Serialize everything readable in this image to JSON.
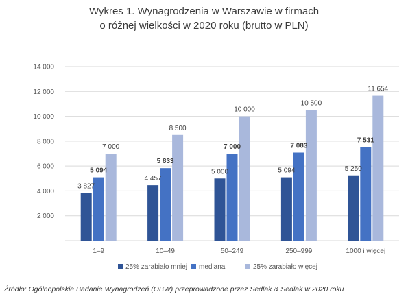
{
  "chart_data": {
    "type": "bar",
    "title_lines": [
      "Wykres 1. Wynagrodzenia w Warszawie w firmach",
      "o różnej wielkości w 2020 roku (brutto w PLN)"
    ],
    "categories": [
      "1–9",
      "10–49",
      "50–249",
      "250–999",
      "1000 i więcej"
    ],
    "series": [
      {
        "name": "25% zarabiało mniej",
        "values": [
          3827,
          4457,
          5000,
          5094,
          5250
        ],
        "labels": [
          "3 827",
          "4 457",
          "5 000",
          "5 094",
          "5 250"
        ],
        "color": "#2f5496",
        "bold_labels": false
      },
      {
        "name": "mediana",
        "values": [
          5094,
          5833,
          7000,
          7083,
          7531
        ],
        "labels": [
          "5 094",
          "5 833",
          "7 000",
          "7 083",
          "7 531"
        ],
        "color": "#4472c4",
        "bold_labels": true
      },
      {
        "name": "25% zarabiało więcej",
        "values": [
          7000,
          8500,
          10000,
          10500,
          11654
        ],
        "labels": [
          "7 000",
          "8 500",
          "10 000",
          "10 500",
          "11 654"
        ],
        "color": "#a9b8dc",
        "bold_labels": false
      }
    ],
    "ylim": [
      0,
      14000
    ],
    "yticks": [
      0,
      2000,
      4000,
      6000,
      8000,
      10000,
      12000,
      14000
    ],
    "ytick_labels": [
      "-",
      "2 000",
      "4 000",
      "6 000",
      "8 000",
      "10 000",
      "12 000",
      "14 000"
    ],
    "grid": true,
    "legend_position": "bottom"
  },
  "source_note": "Źródło: Ogólnopolskie Badanie Wynagrodzeń (OBW) przeprowadzone przez Sedlak & Sedlak w 2020 roku"
}
